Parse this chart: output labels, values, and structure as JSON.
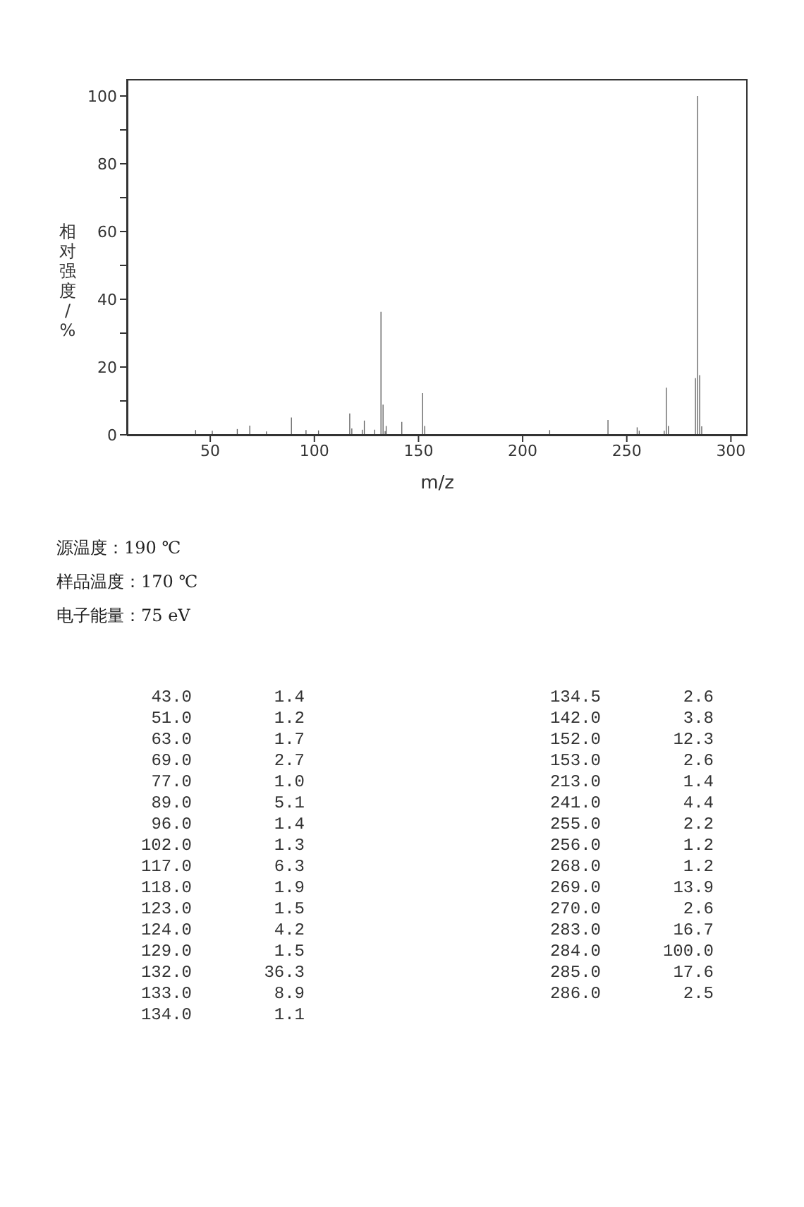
{
  "chart_data": [
    {
      "type": "bar",
      "xlabel": "m/z",
      "ylabel": "相对强度/%",
      "x": [
        43.0,
        51.0,
        63.0,
        69.0,
        77.0,
        89.0,
        96.0,
        102.0,
        117.0,
        118.0,
        123.0,
        124.0,
        129.0,
        132.0,
        133.0,
        134.0,
        134.5,
        142.0,
        152.0,
        153.0,
        213.0,
        241.0,
        255.0,
        256.0,
        268.0,
        269.0,
        270.0,
        283.0,
        284.0,
        285.0,
        286.0
      ],
      "values": [
        1.4,
        1.2,
        1.7,
        2.7,
        1.0,
        5.1,
        1.4,
        1.3,
        6.3,
        1.9,
        1.5,
        4.2,
        1.5,
        36.3,
        8.9,
        1.1,
        2.6,
        3.8,
        12.3,
        2.6,
        1.4,
        4.4,
        2.2,
        1.2,
        1.2,
        13.9,
        2.6,
        16.7,
        100.0,
        17.6,
        2.5
      ],
      "color": "#606060",
      "xlim": [
        10,
        308
      ],
      "xticks": [
        50,
        100,
        150,
        200,
        250,
        300
      ],
      "ylim": [
        0,
        105
      ],
      "yticks": [
        0,
        {
          "value": 10,
          "label": null
        },
        20,
        {
          "value": 30,
          "label": null
        },
        40,
        {
          "value": 50,
          "label": null
        },
        60,
        {
          "value": 70,
          "label": null
        },
        80,
        {
          "value": 90,
          "label": null
        },
        100
      ],
      "annotations": [
        "源温度：190 ℃",
        "样品温度：170 ℃",
        "电子能量：75 eV"
      ]
    },
    {
      "type": "other",
      "annotations": [
        "43.0",
        "1.4",
        "51.0",
        "1.2",
        "63.0",
        "1.7",
        "69.0",
        "2.7",
        "77.0",
        "1.0",
        "89.0",
        "5.1",
        "96.0",
        "1.4",
        "102.0",
        "1.3",
        "117.0",
        "6.3",
        "118.0",
        "1.9",
        "123.0",
        "1.5",
        "124.0",
        "4.2",
        "129.0",
        "1.5",
        "132.0",
        "36.3",
        "133.0",
        "8.9",
        "134.0",
        "1.1",
        "134.5",
        "2.6",
        "142.0",
        "3.8",
        "152.0",
        "12.3",
        "153.0",
        "2.6",
        "213.0",
        "1.4",
        "241.0",
        "4.4",
        "255.0",
        "2.2",
        "256.0",
        "1.2",
        "268.0",
        "1.2",
        "269.0",
        "13.9",
        "270.0",
        "2.6",
        "283.0",
        "16.7",
        "284.0",
        "100.0",
        "285.0",
        "17.6",
        "286.0",
        "2.5"
      ]
    }
  ]
}
